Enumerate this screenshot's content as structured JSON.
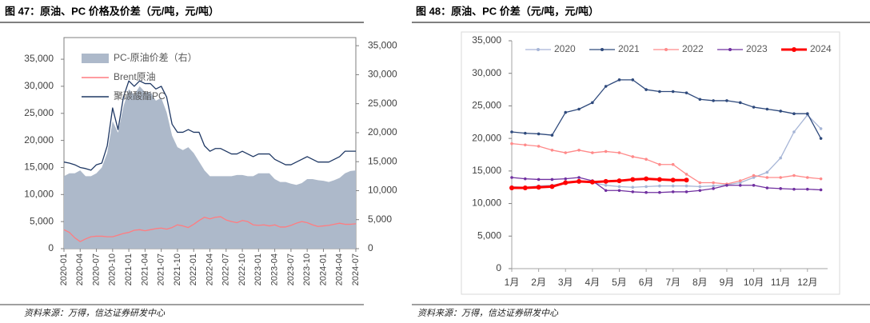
{
  "chart_data": [
    {
      "type": "line",
      "title": "图 47：原油、PC 价格及价差（元/吨，元/吨）",
      "source": "资料来源：万得，信达证券研发中心",
      "categories": [
        "2020-01",
        null,
        null,
        "2020-04",
        null,
        null,
        "2020-07",
        null,
        null,
        "2020-10",
        null,
        null,
        "2021-01",
        null,
        null,
        "2021-04",
        null,
        null,
        "2021-07",
        null,
        null,
        "2021-10",
        null,
        null,
        "2022-01",
        null,
        null,
        "2022-04",
        null,
        null,
        "2022-07",
        null,
        null,
        "2022-10",
        null,
        null,
        "2023-01",
        null,
        null,
        "2023-04",
        null,
        null,
        "2023-07",
        null,
        null,
        "2023-10",
        null,
        null,
        "2024-01",
        null,
        null,
        "2024-04",
        null,
        null,
        "2024-07"
      ],
      "series": [
        {
          "name": "PC-原油价差（右）",
          "type": "area",
          "axis": "y2",
          "color": "#adb9ca",
          "values": [
            12500,
            13000,
            13000,
            13500,
            12500,
            12500,
            13000,
            14000,
            16500,
            22000,
            20000,
            24500,
            27500,
            26500,
            28000,
            27000,
            27000,
            25500,
            26000,
            23500,
            19500,
            17500,
            17000,
            17500,
            16500,
            15000,
            13500,
            12500,
            12500,
            12500,
            12500,
            12500,
            12700,
            12700,
            12500,
            12500,
            13000,
            13000,
            13000,
            12000,
            11500,
            11500,
            11200,
            11000,
            11300,
            12000,
            12000,
            11800,
            11700,
            11500,
            11800,
            12200,
            13000,
            13400,
            13500
          ]
        },
        {
          "name": "Brent原油",
          "type": "line",
          "color": "#ff7c80",
          "values": [
            3500,
            3000,
            2000,
            1300,
            1800,
            2200,
            2300,
            2300,
            2200,
            2200,
            2500,
            2800,
            3000,
            3400,
            3500,
            3300,
            3500,
            3700,
            3800,
            3600,
            3900,
            4400,
            4200,
            3900,
            4500,
            5200,
            5800,
            5500,
            5800,
            5900,
            5300,
            5000,
            4800,
            5200,
            5000,
            4400,
            4300,
            4400,
            4200,
            4400,
            4000,
            4000,
            4300,
            4700,
            5000,
            4800,
            4400,
            4100,
            4200,
            4300,
            4500,
            4700,
            4500,
            4500,
            4600
          ]
        },
        {
          "name": "聚碳酸酯PC",
          "type": "line",
          "color": "#1f3864",
          "values": [
            16000,
            15800,
            15500,
            15000,
            14800,
            14500,
            15500,
            15800,
            19000,
            26000,
            22000,
            28000,
            31000,
            30000,
            31000,
            30500,
            30500,
            29500,
            30000,
            28000,
            23000,
            21500,
            21500,
            22000,
            21500,
            21500,
            19000,
            18000,
            18500,
            18500,
            18000,
            17500,
            17500,
            18000,
            17500,
            17000,
            17500,
            17500,
            17500,
            16500,
            16000,
            15500,
            15500,
            16000,
            16500,
            17000,
            16500,
            16000,
            16000,
            16000,
            16500,
            17000,
            18000,
            18000,
            18000
          ]
        }
      ],
      "ylim": [
        0,
        39000
      ],
      "yticks": [
        0,
        {
          "value": 5000,
          "label": "5,000"
        },
        {
          "value": 10000,
          "label": "10,000"
        },
        {
          "value": 15000,
          "label": "15,000"
        },
        {
          "value": 20000,
          "label": "20,000"
        },
        {
          "value": 25000,
          "label": "25,000"
        },
        {
          "value": 30000,
          "label": "30,000"
        },
        {
          "value": 35000,
          "label": "35,000"
        }
      ],
      "y2lim": [
        0,
        36400
      ],
      "y2ticks": [
        0,
        {
          "value": 5000,
          "label": "5,000"
        },
        {
          "value": 10000,
          "label": "10,000"
        },
        {
          "value": 15000,
          "label": "15,000"
        },
        {
          "value": 20000,
          "label": "20,000"
        },
        {
          "value": 25000,
          "label": "25,000"
        },
        {
          "value": 30000,
          "label": "30,000"
        },
        {
          "value": 35000,
          "label": "35,000"
        }
      ],
      "grid": false,
      "legend": "upper left"
    },
    {
      "type": "line",
      "title": "图 48：原油、PC 价差（元/吨，元/吨）",
      "source": "资料来源：万得，信达证券研发中心",
      "x": [
        1,
        1.5,
        2,
        2.5,
        3,
        3.5,
        4,
        4.5,
        5,
        5.5,
        6,
        6.5,
        7,
        7.5,
        8,
        8.5,
        9,
        9.5,
        10,
        10.5,
        11,
        11.5,
        12,
        12.5
      ],
      "xlim": [
        1,
        12.75
      ],
      "xticks": [
        {
          "value": 1,
          "label": "1月"
        },
        {
          "value": 2,
          "label": "2月"
        },
        {
          "value": 3,
          "label": "3月"
        },
        {
          "value": 4,
          "label": "4月"
        },
        {
          "value": 5,
          "label": "5月"
        },
        {
          "value": 6,
          "label": "6月"
        },
        {
          "value": 7,
          "label": "7月"
        },
        {
          "value": 8,
          "label": "8月"
        },
        {
          "value": 9,
          "label": "9月"
        },
        {
          "value": 10,
          "label": "10月"
        },
        {
          "value": 11,
          "label": "11月"
        },
        {
          "value": 12,
          "label": "12月"
        }
      ],
      "series": [
        {
          "name": "2020",
          "color": "#a6b5d6",
          "values": [
            12600,
            12500,
            12700,
            12800,
            13200,
            13500,
            13200,
            12800,
            12600,
            12500,
            12600,
            12700,
            12700,
            12700,
            12600,
            12700,
            12900,
            13200,
            14000,
            14800,
            17000,
            21000,
            23600,
            21500
          ]
        },
        {
          "name": "2021",
          "color": "#2f4a7c",
          "values": [
            21000,
            20800,
            20700,
            20500,
            24000,
            24500,
            25500,
            28000,
            29000,
            29000,
            27500,
            27200,
            27200,
            27000,
            26000,
            25800,
            25800,
            25500,
            24800,
            24500,
            24200,
            23800,
            23800,
            20000
          ]
        },
        {
          "name": "2022",
          "color": "#ff8a8a",
          "values": [
            19200,
            19000,
            18800,
            18200,
            17800,
            18200,
            17800,
            18000,
            17800,
            17200,
            16800,
            16000,
            16000,
            14500,
            13200,
            13200,
            13000,
            13500,
            14300,
            14000,
            14000,
            14300,
            14000,
            13800
          ]
        },
        {
          "name": "2023",
          "color": "#7030a0",
          "values": [
            14000,
            13800,
            13700,
            13700,
            13800,
            14000,
            13500,
            12000,
            12000,
            11800,
            11700,
            11700,
            11800,
            11800,
            12000,
            12300,
            12800,
            12800,
            12800,
            12400,
            12300,
            12200,
            12200,
            12100
          ]
        },
        {
          "name": "2024",
          "color": "#ff0000",
          "highlight": true,
          "values": [
            12400,
            12400,
            12500,
            12600,
            13200,
            13400,
            13300,
            13400,
            13500,
            13700,
            13800,
            13700,
            13600,
            13600,
            null,
            null,
            null,
            null,
            null,
            null,
            null,
            null,
            null,
            null
          ]
        }
      ],
      "ylim": [
        0,
        35000
      ],
      "yticks": [
        0,
        {
          "value": 5000,
          "label": "5,000"
        },
        {
          "value": 10000,
          "label": "10,000"
        },
        {
          "value": 15000,
          "label": "15,000"
        },
        {
          "value": 20000,
          "label": "20,000"
        },
        {
          "value": 25000,
          "label": "25,000"
        },
        {
          "value": 30000,
          "label": "30,000"
        },
        {
          "value": 35000,
          "label": "35,000"
        }
      ],
      "grid": false,
      "legend": "top"
    }
  ]
}
